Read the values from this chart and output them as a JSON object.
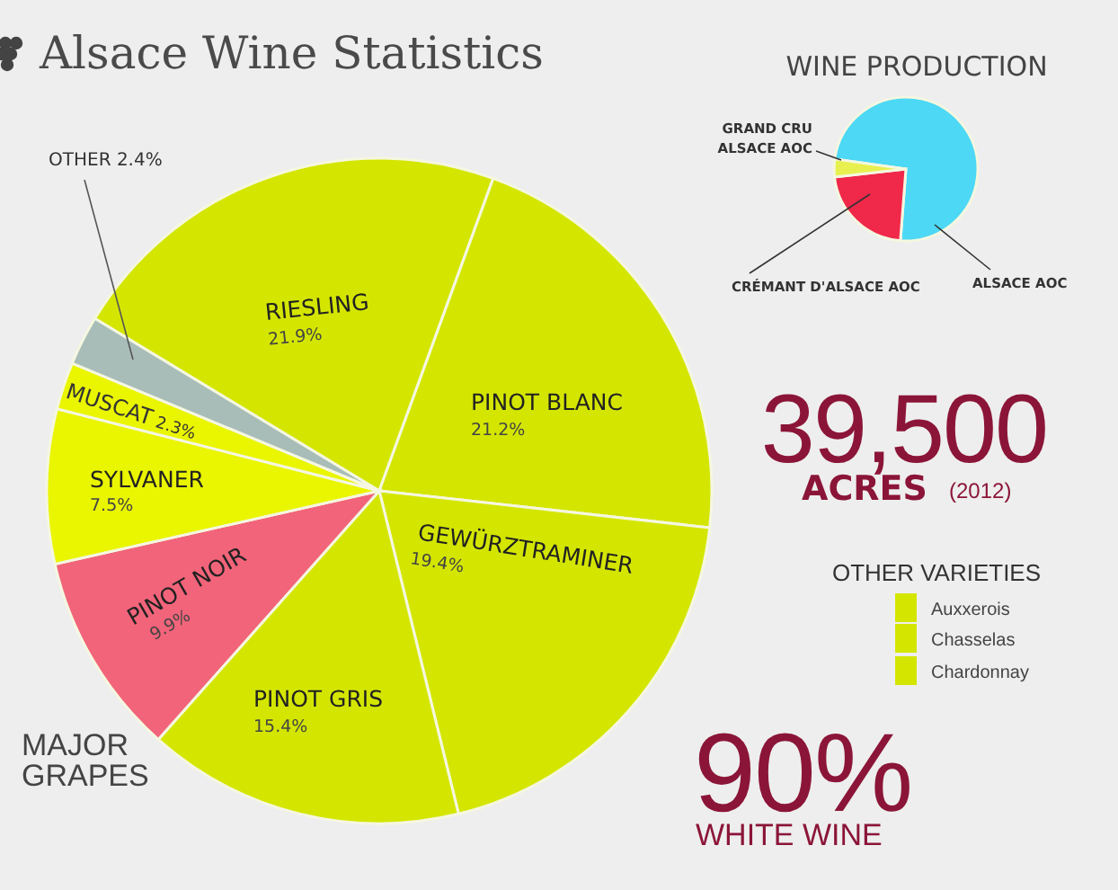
{
  "chart_data": [
    {
      "type": "pie",
      "title": "Alsace Wine Statistics",
      "categories": [
        "RIESLING",
        "PINOT BLANC",
        "GEWÜRZTRAMINER",
        "PINOT GRIS",
        "PINOT NOIR",
        "SYLVANER",
        "MUSCAT",
        "OTHER"
      ],
      "values": [
        21.9,
        21.2,
        19.4,
        15.4,
        9.9,
        7.5,
        2.3,
        2.4
      ],
      "value_labels": [
        "21.9%",
        "21.2%",
        "19.4%",
        "15.4%",
        "9.9%",
        "7.5%",
        "2.3%",
        "2.4%"
      ],
      "colors": [
        "#d4e600",
        "#d4e600",
        "#d4e600",
        "#d4e600",
        "#f2647a",
        "#eaf500",
        "#eaf500",
        "#a8bdb8"
      ],
      "annotations": [
        "MAJOR GRAPES",
        "39,500",
        "ACRES",
        "(2012)",
        "OTHER VARIETIES",
        "Auxxerois",
        "Chasselas",
        "Chardonnay",
        "90%",
        "WHITE WINE"
      ]
    },
    {
      "type": "pie",
      "title": "WINE PRODUCTION",
      "categories": [
        "ALSACE AOC",
        "CRÉMANT D'ALSACE AOC",
        "GRAND CRU ALSACE AOC"
      ],
      "values": [
        74,
        22,
        4
      ],
      "colors": [
        "#4dd8f5",
        "#f0284a",
        "#e8f050"
      ]
    }
  ]
}
